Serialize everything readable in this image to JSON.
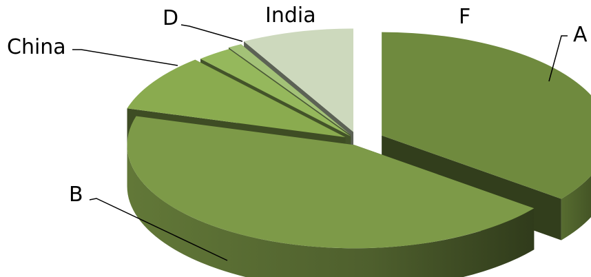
{
  "chart_data": {
    "type": "pie",
    "style": "3d-exploded",
    "title": "",
    "slices": [
      {
        "label": "A",
        "value": 35.5,
        "color": "#6f8a3e"
      },
      {
        "label": "B",
        "value": 44.0,
        "color": "#7d9a48"
      },
      {
        "label": "China",
        "value": 9.0,
        "color": "#8aab4f"
      },
      {
        "label": "D",
        "value": 2.5,
        "color": "#95b85c"
      },
      {
        "label": "India",
        "value": 1.0,
        "color": "#a3c277"
      },
      {
        "label": "F",
        "value": 8.0,
        "color": "#cdd9bd"
      }
    ],
    "legend": "none"
  }
}
